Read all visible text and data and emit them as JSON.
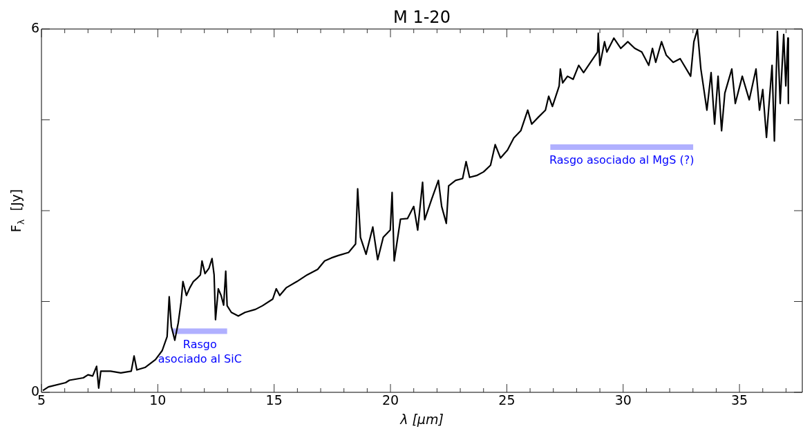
{
  "chart_data": {
    "type": "line",
    "title": "M 1-20",
    "xlabel": "λ [μm]",
    "ylabel": "F$_{λ}$  [Jy]",
    "xlim": [
      5,
      37.7
    ],
    "ylim": [
      0,
      6
    ],
    "xticks": [
      5,
      {
        "value": 6,
        "label": null
      },
      {
        "value": 7,
        "label": null
      },
      {
        "value": 8,
        "label": null
      },
      {
        "value": 9,
        "label": null
      },
      10,
      {
        "value": 11,
        "label": null
      },
      {
        "value": 12,
        "label": null
      },
      {
        "value": 13,
        "label": null
      },
      {
        "value": 14,
        "label": null
      },
      15,
      {
        "value": 16,
        "label": null
      },
      {
        "value": 17,
        "label": null
      },
      {
        "value": 18,
        "label": null
      },
      {
        "value": 19,
        "label": null
      },
      20,
      {
        "value": 21,
        "label": null
      },
      {
        "value": 22,
        "label": null
      },
      {
        "value": 23,
        "label": null
      },
      {
        "value": 24,
        "label": null
      },
      25,
      {
        "value": 26,
        "label": null
      },
      {
        "value": 27,
        "label": null
      },
      {
        "value": 28,
        "label": null
      },
      {
        "value": 29,
        "label": null
      },
      30,
      {
        "value": 31,
        "label": null
      },
      {
        "value": 32,
        "label": null
      },
      {
        "value": 33,
        "label": null
      },
      {
        "value": 34,
        "label": null
      },
      35,
      {
        "value": 36,
        "label": null
      },
      {
        "value": 37,
        "label": null
      }
    ],
    "yticks": [
      0,
      {
        "value": 1.5,
        "label": null
      },
      {
        "value": 3,
        "label": null
      },
      {
        "value": 4.5,
        "label": null
      },
      6
    ],
    "series": [
      {
        "color": "#000000",
        "x": [
          5.06,
          5.3,
          6.04,
          6.2,
          6.8,
          7.0,
          7.2,
          7.37,
          7.46,
          7.55,
          7.97,
          8.41,
          8.86,
          8.98,
          9.1,
          9.45,
          9.9,
          10.19,
          10.4,
          10.49,
          10.58,
          10.73,
          10.88,
          11.0,
          11.08,
          11.23,
          11.38,
          11.53,
          11.68,
          11.83,
          11.9,
          12.03,
          12.2,
          12.33,
          12.42,
          12.48,
          12.6,
          12.72,
          12.83,
          12.92,
          12.98,
          13.16,
          13.46,
          13.75,
          14.2,
          14.5,
          14.94,
          15.09,
          15.24,
          15.53,
          15.98,
          16.42,
          16.87,
          17.17,
          17.46,
          17.76,
          18.2,
          18.5,
          18.59,
          18.71,
          18.95,
          19.24,
          19.45,
          19.69,
          19.99,
          20.07,
          20.16,
          20.43,
          20.73,
          21.0,
          21.17,
          21.38,
          21.47,
          21.77,
          22.06,
          22.2,
          22.4,
          22.5,
          22.8,
          23.1,
          23.25,
          23.4,
          23.7,
          24.0,
          24.3,
          24.5,
          24.73,
          25.03,
          25.3,
          25.6,
          25.9,
          26.07,
          26.37,
          26.66,
          26.8,
          26.96,
          27.2,
          27.25,
          27.3,
          27.4,
          27.61,
          27.85,
          28.09,
          28.3,
          28.6,
          28.9,
          28.93,
          29.0,
          29.2,
          29.3,
          29.6,
          29.9,
          30.2,
          30.5,
          30.8,
          31.1,
          31.26,
          31.4,
          31.65,
          31.85,
          32.15,
          32.45,
          32.9,
          33.04,
          33.19,
          33.34,
          33.6,
          33.78,
          33.93,
          34.08,
          34.23,
          34.37,
          34.67,
          34.82,
          35.12,
          35.42,
          35.71,
          35.86,
          36.0,
          36.16,
          36.4,
          36.5,
          36.63,
          36.75,
          36.9,
          36.99,
          37.08,
          37.1
        ],
        "values": [
          0.03,
          0.09,
          0.16,
          0.2,
          0.24,
          0.29,
          0.27,
          0.43,
          0.07,
          0.35,
          0.35,
          0.32,
          0.35,
          0.6,
          0.37,
          0.41,
          0.54,
          0.69,
          0.92,
          1.58,
          1.09,
          0.86,
          1.15,
          1.49,
          1.83,
          1.6,
          1.73,
          1.83,
          1.88,
          1.94,
          2.17,
          1.96,
          2.05,
          2.21,
          1.94,
          1.2,
          1.71,
          1.6,
          1.44,
          2.0,
          1.43,
          1.32,
          1.26,
          1.32,
          1.37,
          1.43,
          1.54,
          1.71,
          1.6,
          1.73,
          1.83,
          1.94,
          2.03,
          2.17,
          2.22,
          2.26,
          2.31,
          2.45,
          3.36,
          2.56,
          2.28,
          2.73,
          2.19,
          2.56,
          2.68,
          3.3,
          2.17,
          2.86,
          2.87,
          3.07,
          2.68,
          3.47,
          2.85,
          3.19,
          3.5,
          3.07,
          2.79,
          3.41,
          3.5,
          3.53,
          3.81,
          3.55,
          3.58,
          3.64,
          3.75,
          4.09,
          3.87,
          4.0,
          4.2,
          4.32,
          4.66,
          4.43,
          4.55,
          4.66,
          4.89,
          4.72,
          5.0,
          5.06,
          5.34,
          5.11,
          5.22,
          5.17,
          5.4,
          5.28,
          5.45,
          5.62,
          5.93,
          5.4,
          5.79,
          5.62,
          5.85,
          5.68,
          5.79,
          5.68,
          5.62,
          5.4,
          5.68,
          5.45,
          5.79,
          5.57,
          5.45,
          5.51,
          5.22,
          5.79,
          5.99,
          5.34,
          4.66,
          5.28,
          4.43,
          5.22,
          4.32,
          4.94,
          5.34,
          4.77,
          5.22,
          4.83,
          5.34,
          4.66,
          5.0,
          4.21,
          5.4,
          4.15,
          5.96,
          4.77,
          5.91,
          5.06,
          5.85,
          4.77
        ]
      },
      {
        "color": "#b0b0ff",
        "x": [
          10.64,
          12.98
        ],
        "values": [
          1.01,
          1.01
        ]
      },
      {
        "color": "#b0b0ff",
        "x": [
          26.87,
          33.01
        ],
        "values": [
          4.05,
          4.05
        ]
      }
    ],
    "annotations": [
      "Rasgo\nasociado al SiC",
      "Rasgo asociado al MgS (?)"
    ]
  }
}
